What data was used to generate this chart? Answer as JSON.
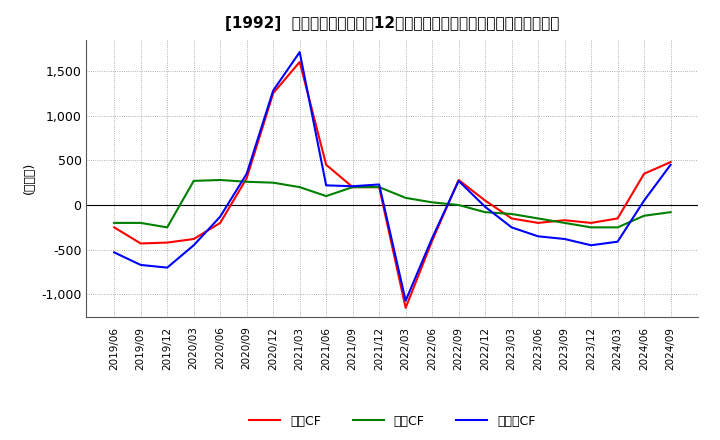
{
  "title": "[1992]  キャッシュフローの12か月移動合計の対前年同期増減額の推移",
  "ylabel": "(百万円)",
  "ylim": [
    -1250,
    1850
  ],
  "yticks": [
    -1000,
    -500,
    0,
    500,
    1000,
    1500
  ],
  "legend_labels": [
    "営業CF",
    "投資CF",
    "フリーCF"
  ],
  "colors": {
    "operating": "#ff0000",
    "investing": "#008000",
    "free": "#0000ff"
  },
  "dates": [
    "2019/06",
    "2019/09",
    "2019/12",
    "2020/03",
    "2020/06",
    "2020/09",
    "2020/12",
    "2021/03",
    "2021/06",
    "2021/09",
    "2021/12",
    "2022/03",
    "2022/06",
    "2022/09",
    "2022/12",
    "2023/03",
    "2023/06",
    "2023/09",
    "2023/12",
    "2024/03",
    "2024/06",
    "2024/09"
  ],
  "operating_cf": [
    -250,
    -430,
    -420,
    -380,
    -200,
    300,
    1250,
    1600,
    450,
    200,
    200,
    -1150,
    -400,
    280,
    50,
    -150,
    -200,
    -170,
    -200,
    -150,
    350,
    480
  ],
  "investing_cf": [
    -200,
    -200,
    -250,
    270,
    280,
    260,
    250,
    200,
    100,
    200,
    200,
    80,
    30,
    0,
    -80,
    -100,
    -150,
    -200,
    -250,
    -250,
    -120,
    -80
  ],
  "free_cf": [
    -530,
    -670,
    -700,
    -450,
    -130,
    350,
    1280,
    1710,
    220,
    210,
    230,
    -1070,
    -370,
    270,
    -20,
    -250,
    -350,
    -380,
    -450,
    -410,
    50,
    450
  ]
}
